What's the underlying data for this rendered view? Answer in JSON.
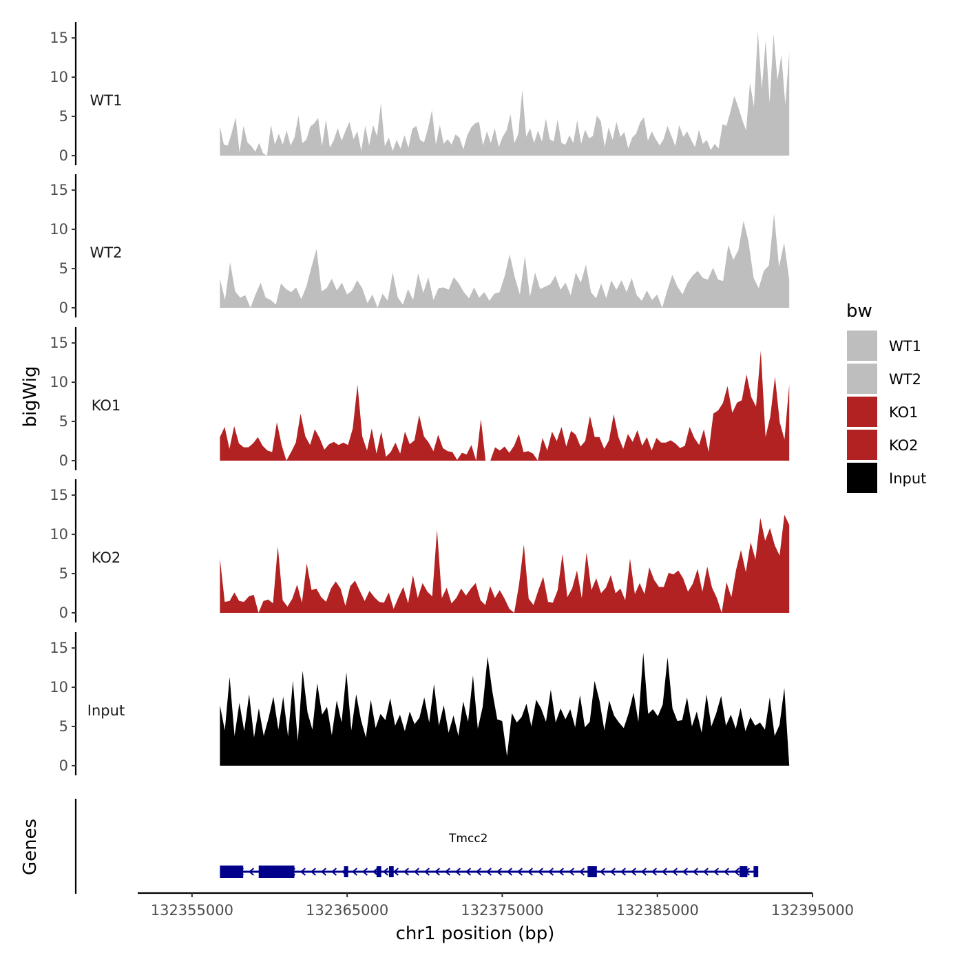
{
  "chart_data": {
    "type": "area",
    "xlabel": "chr1 position (bp)",
    "ylabel": "bigWig",
    "gene_panel_label": "Genes",
    "x_range": [
      132351500,
      132395000
    ],
    "x_ticks": [
      "132355000",
      "132365000",
      "132375000",
      "132385000",
      "132395000"
    ],
    "x_tick_values": [
      132355000,
      132365000,
      132375000,
      132385000,
      132395000
    ],
    "data_x_range": [
      132356800,
      132393500
    ],
    "ylim": [
      0,
      16.5
    ],
    "y_ticks": [
      "0",
      "5",
      "10",
      "15"
    ],
    "y_tick_values": [
      0,
      5,
      10,
      15
    ],
    "legend": {
      "title": "bw",
      "items": [
        {
          "label": "WT1",
          "color": "#bebebe"
        },
        {
          "label": "WT2",
          "color": "#bebebe"
        },
        {
          "label": "KO1",
          "color": "#b22222"
        },
        {
          "label": "KO2",
          "color": "#b22222"
        },
        {
          "label": "Input",
          "color": "#000000"
        }
      ]
    },
    "series": [
      {
        "name": "WT1",
        "color": "#bebebe",
        "values": [
          3.7,
          1.4,
          1.3,
          2.9,
          4.9,
          0.4,
          3.8,
          1.7,
          1.2,
          0.5,
          1.6,
          0.3,
          0.0,
          3.9,
          1.4,
          2.8,
          1.4,
          3.2,
          1.3,
          2.3,
          5.1,
          1.6,
          2.0,
          3.7,
          4.1,
          4.8,
          1.2,
          4.6,
          1.0,
          2.0,
          3.5,
          1.9,
          3.2,
          4.3,
          2.1,
          3.1,
          0.6,
          3.8,
          1.3,
          3.9,
          2.5,
          6.7,
          1.2,
          2.3,
          0.6,
          2.0,
          0.9,
          2.6,
          1.0,
          3.4,
          3.8,
          2.0,
          1.7,
          3.5,
          5.8,
          1.4,
          3.9,
          1.5,
          2.1,
          1.4,
          2.7,
          2.3,
          0.8,
          2.6,
          3.6,
          4.1,
          4.3,
          1.3,
          3.1,
          1.6,
          3.5,
          1.1,
          2.4,
          3.2,
          5.3,
          1.6,
          2.8,
          8.4,
          2.4,
          3.5,
          1.6,
          3.2,
          1.8,
          4.7,
          2.1,
          1.8,
          4.6,
          1.6,
          1.4,
          2.6,
          1.6,
          4.5,
          1.5,
          3.3,
          2.2,
          2.5,
          5.1,
          4.4,
          1.1,
          3.6,
          2.0,
          4.3,
          2.4,
          3.0,
          0.9,
          2.3,
          2.8,
          4.2,
          4.9,
          1.9,
          3.1,
          2.1,
          1.3,
          2.1,
          3.8,
          2.5,
          1.2,
          3.9,
          2.4,
          3.1,
          2.0,
          1.1,
          3.3,
          1.5,
          2.0,
          0.7,
          1.5,
          0.9,
          4.0,
          3.8,
          5.6,
          7.6,
          6.2,
          4.6,
          3.2,
          9.3,
          6.2,
          15.9,
          8.5,
          14.7,
          6.7,
          15.5,
          9.6,
          12.8,
          6.5,
          13.1
        ]
      },
      {
        "name": "WT2",
        "color": "#bebebe",
        "values": [
          3.7,
          1.0,
          5.8,
          2.1,
          1.3,
          1.6,
          0.0,
          1.7,
          3.2,
          1.3,
          1.0,
          0.4,
          3.1,
          2.4,
          2.0,
          2.6,
          1.1,
          2.7,
          5.2,
          7.5,
          2.1,
          2.5,
          3.7,
          2.2,
          3.2,
          1.7,
          2.2,
          3.5,
          2.5,
          0.6,
          1.7,
          0.0,
          1.8,
          0.9,
          4.5,
          1.3,
          0.4,
          2.4,
          1.0,
          4.4,
          1.9,
          3.9,
          1.0,
          2.5,
          2.6,
          2.3,
          3.9,
          3.1,
          2.0,
          1.2,
          2.6,
          1.3,
          2.0,
          0.9,
          1.8,
          2.0,
          4.0,
          6.8,
          3.9,
          1.7,
          6.6,
          1.4,
          4.5,
          2.4,
          2.7,
          3.0,
          4.1,
          2.3,
          3.2,
          1.6,
          4.5,
          3.2,
          5.5,
          2.0,
          1.2,
          3.1,
          1.2,
          3.5,
          2.3,
          3.5,
          2.0,
          3.8,
          1.6,
          0.9,
          2.2,
          1.0,
          1.7,
          0.0,
          2.2,
          4.2,
          2.7,
          1.7,
          3.2,
          4.1,
          4.7,
          3.8,
          3.6,
          5.1,
          3.6,
          3.4,
          8.0,
          6.1,
          7.4,
          11.1,
          8.4,
          3.8,
          2.5,
          4.7,
          5.4,
          12.0,
          5.2,
          8.3,
          3.6
        ]
      },
      {
        "name": "KO1",
        "color": "#b22222",
        "values": [
          3.0,
          4.3,
          1.5,
          4.4,
          2.2,
          1.7,
          1.7,
          2.2,
          3.0,
          1.9,
          1.3,
          1.1,
          4.9,
          2.0,
          0.0,
          1.1,
          2.3,
          6.0,
          3.1,
          2.0,
          4.0,
          2.9,
          1.4,
          2.1,
          2.4,
          2.0,
          2.3,
          2.0,
          4.1,
          9.7,
          3.1,
          1.3,
          4.1,
          0.9,
          3.7,
          0.5,
          1.1,
          2.3,
          0.9,
          3.7,
          2.1,
          2.6,
          5.8,
          3.1,
          2.3,
          1.2,
          3.3,
          1.6,
          1.2,
          1.1,
          0.1,
          1.0,
          0.8,
          2.0,
          0.0,
          5.3,
          0.0,
          0.0,
          1.7,
          1.3,
          1.8,
          1.0,
          1.9,
          3.4,
          1.1,
          1.2,
          0.9,
          0.0,
          2.9,
          1.3,
          3.7,
          2.5,
          4.3,
          1.8,
          3.8,
          3.3,
          1.8,
          2.5,
          5.7,
          3.0,
          3.0,
          1.5,
          2.6,
          5.9,
          3.0,
          1.5,
          3.4,
          2.4,
          3.9,
          1.9,
          3.0,
          1.3,
          2.9,
          2.3,
          2.3,
          2.6,
          2.2,
          1.6,
          1.9,
          4.3,
          2.9,
          2.0,
          4.0,
          1.1,
          6.0,
          6.4,
          7.3,
          9.5,
          6.1,
          7.4,
          7.7,
          11.0,
          8.1,
          6.9,
          14.0,
          3.0,
          5.6,
          10.7,
          4.9,
          2.7,
          9.7
        ]
      },
      {
        "name": "KO2",
        "color": "#b22222",
        "values": [
          6.9,
          1.4,
          1.5,
          2.6,
          1.5,
          1.4,
          2.1,
          2.3,
          0.0,
          1.5,
          1.7,
          1.2,
          8.5,
          1.6,
          0.8,
          1.8,
          3.6,
          1.3,
          6.3,
          2.9,
          3.1,
          2.0,
          1.4,
          3.1,
          4.0,
          3.1,
          0.9,
          3.4,
          4.1,
          2.8,
          1.5,
          2.8,
          2.0,
          1.4,
          1.3,
          2.6,
          0.5,
          2.0,
          3.3,
          1.2,
          4.8,
          1.9,
          3.8,
          2.7,
          2.1,
          10.6,
          1.9,
          3.2,
          1.2,
          1.9,
          3.1,
          2.2,
          3.1,
          3.8,
          1.6,
          1.0,
          3.4,
          1.9,
          2.9,
          1.8,
          0.5,
          0.0,
          3.6,
          8.7,
          1.8,
          1.0,
          2.9,
          4.6,
          1.4,
          1.3,
          2.9,
          7.5,
          2.0,
          3.1,
          5.4,
          1.9,
          7.7,
          2.9,
          4.4,
          2.5,
          3.2,
          4.8,
          2.5,
          3.1,
          1.6,
          6.9,
          2.4,
          3.8,
          2.4,
          5.8,
          4.2,
          3.3,
          3.3,
          5.1,
          4.9,
          5.4,
          4.4,
          2.7,
          3.7,
          5.6,
          2.7,
          5.9,
          3.2,
          1.9,
          0.0,
          3.9,
          2.0,
          5.5,
          8.0,
          5.2,
          9.0,
          6.8,
          12.1,
          9.2,
          10.8,
          8.6,
          7.3,
          12.5,
          11.2
        ]
      },
      {
        "name": "Input",
        "color": "#000000",
        "values": [
          7.7,
          4.5,
          11.3,
          3.8,
          8.0,
          4.4,
          9.1,
          3.6,
          7.3,
          3.8,
          6.1,
          8.8,
          4.6,
          8.8,
          3.7,
          10.8,
          3.1,
          12.1,
          6.8,
          4.6,
          10.5,
          6.5,
          7.5,
          3.9,
          8.3,
          5.5,
          11.9,
          4.5,
          9.1,
          5.8,
          3.6,
          8.4,
          4.8,
          6.6,
          5.8,
          8.6,
          5.1,
          6.5,
          4.4,
          6.9,
          5.3,
          6.1,
          8.7,
          5.5,
          10.4,
          5.1,
          7.7,
          4.2,
          6.4,
          3.8,
          8.2,
          5.6,
          11.5,
          4.7,
          7.5,
          13.9,
          9.4,
          5.9,
          5.7,
          1.2,
          6.7,
          5.5,
          6.2,
          7.9,
          5.0,
          8.4,
          7.3,
          5.6,
          9.7,
          5.5,
          7.3,
          5.9,
          7.2,
          4.9,
          9.0,
          4.9,
          5.6,
          10.8,
          8.3,
          4.5,
          8.3,
          6.4,
          5.5,
          4.8,
          6.7,
          9.3,
          5.6,
          14.4,
          6.6,
          7.2,
          6.3,
          7.8,
          13.8,
          7.3,
          5.7,
          5.8,
          8.7,
          5.0,
          6.9,
          4.2,
          9.1,
          5.0,
          6.7,
          8.9,
          5.1,
          6.5,
          4.7,
          7.4,
          4.4,
          6.2,
          5.1,
          5.5,
          4.6,
          8.7,
          3.8,
          5.2,
          9.9,
          0.0
        ]
      }
    ],
    "gene_track": {
      "gene_name": "Tmcc2",
      "color": "#00008b",
      "strand": "-",
      "span": [
        132356800,
        132391500
      ],
      "exons": [
        [
          132356800,
          132358300
        ],
        [
          132359300,
          132360600
        ],
        [
          132360600,
          132361600
        ],
        [
          132364800,
          132365000
        ],
        [
          132366900,
          132367200
        ],
        [
          132367700,
          132368000
        ],
        [
          132380500,
          132381100
        ],
        [
          132390300,
          132390800
        ],
        [
          132391200,
          132391500
        ]
      ]
    }
  }
}
